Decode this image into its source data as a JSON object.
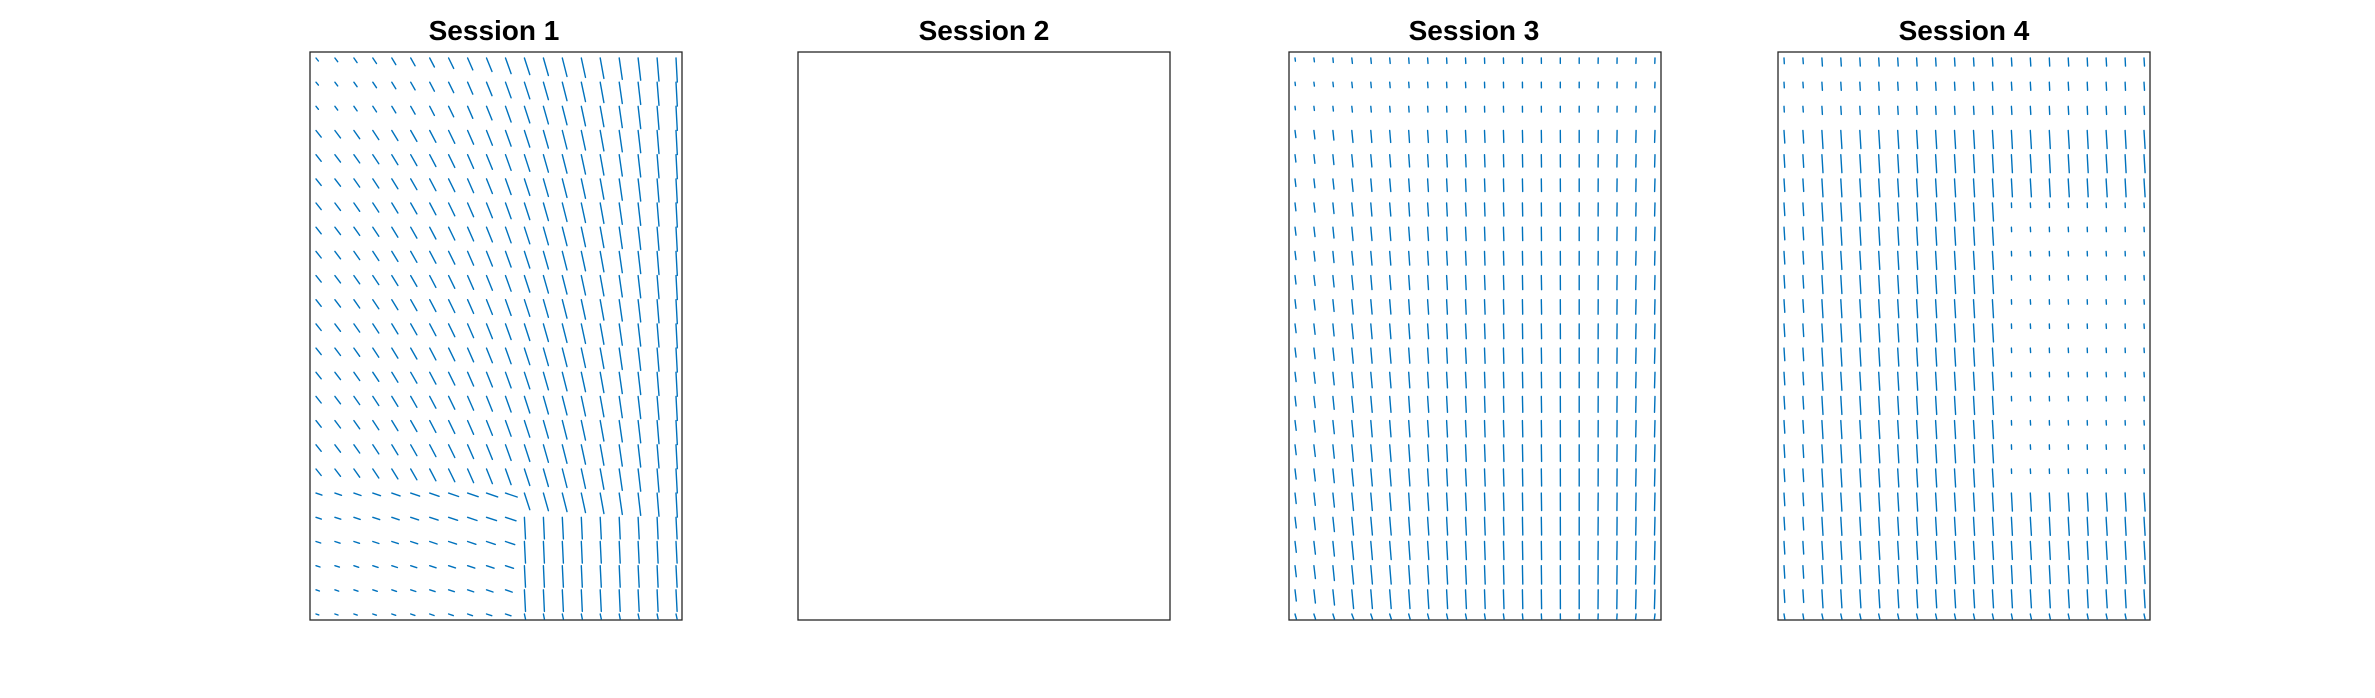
{
  "figure": {
    "background": "#ffffff",
    "panel_count": 4
  },
  "chart_data": [
    {
      "type": "quiver",
      "title": "Session 1",
      "color": "#0072bd",
      "axes_visible": false,
      "grid": false,
      "legend": "none",
      "grid_size": {
        "cols": 20,
        "rows": 24
      },
      "field_pattern": "diagonal-left-upper, vertical-right, weak-lower-left",
      "has_data": true
    },
    {
      "type": "quiver",
      "title": "Session 2",
      "color": "#0072bd",
      "axes_visible": false,
      "grid": false,
      "legend": "none",
      "has_data": false
    },
    {
      "type": "quiver",
      "title": "Session 3",
      "color": "#0072bd",
      "axes_visible": false,
      "grid": false,
      "legend": "none",
      "grid_size": {
        "cols": 20,
        "rows": 24
      },
      "field_pattern": "mostly-vertical, stronger-bottom",
      "has_data": true
    },
    {
      "type": "quiver",
      "title": "Session 4",
      "color": "#0072bd",
      "axes_visible": false,
      "grid": false,
      "legend": "none",
      "grid_size": {
        "cols": 20,
        "rows": 24
      },
      "field_pattern": "vertical-left, weak-right-middle",
      "has_data": true
    }
  ]
}
